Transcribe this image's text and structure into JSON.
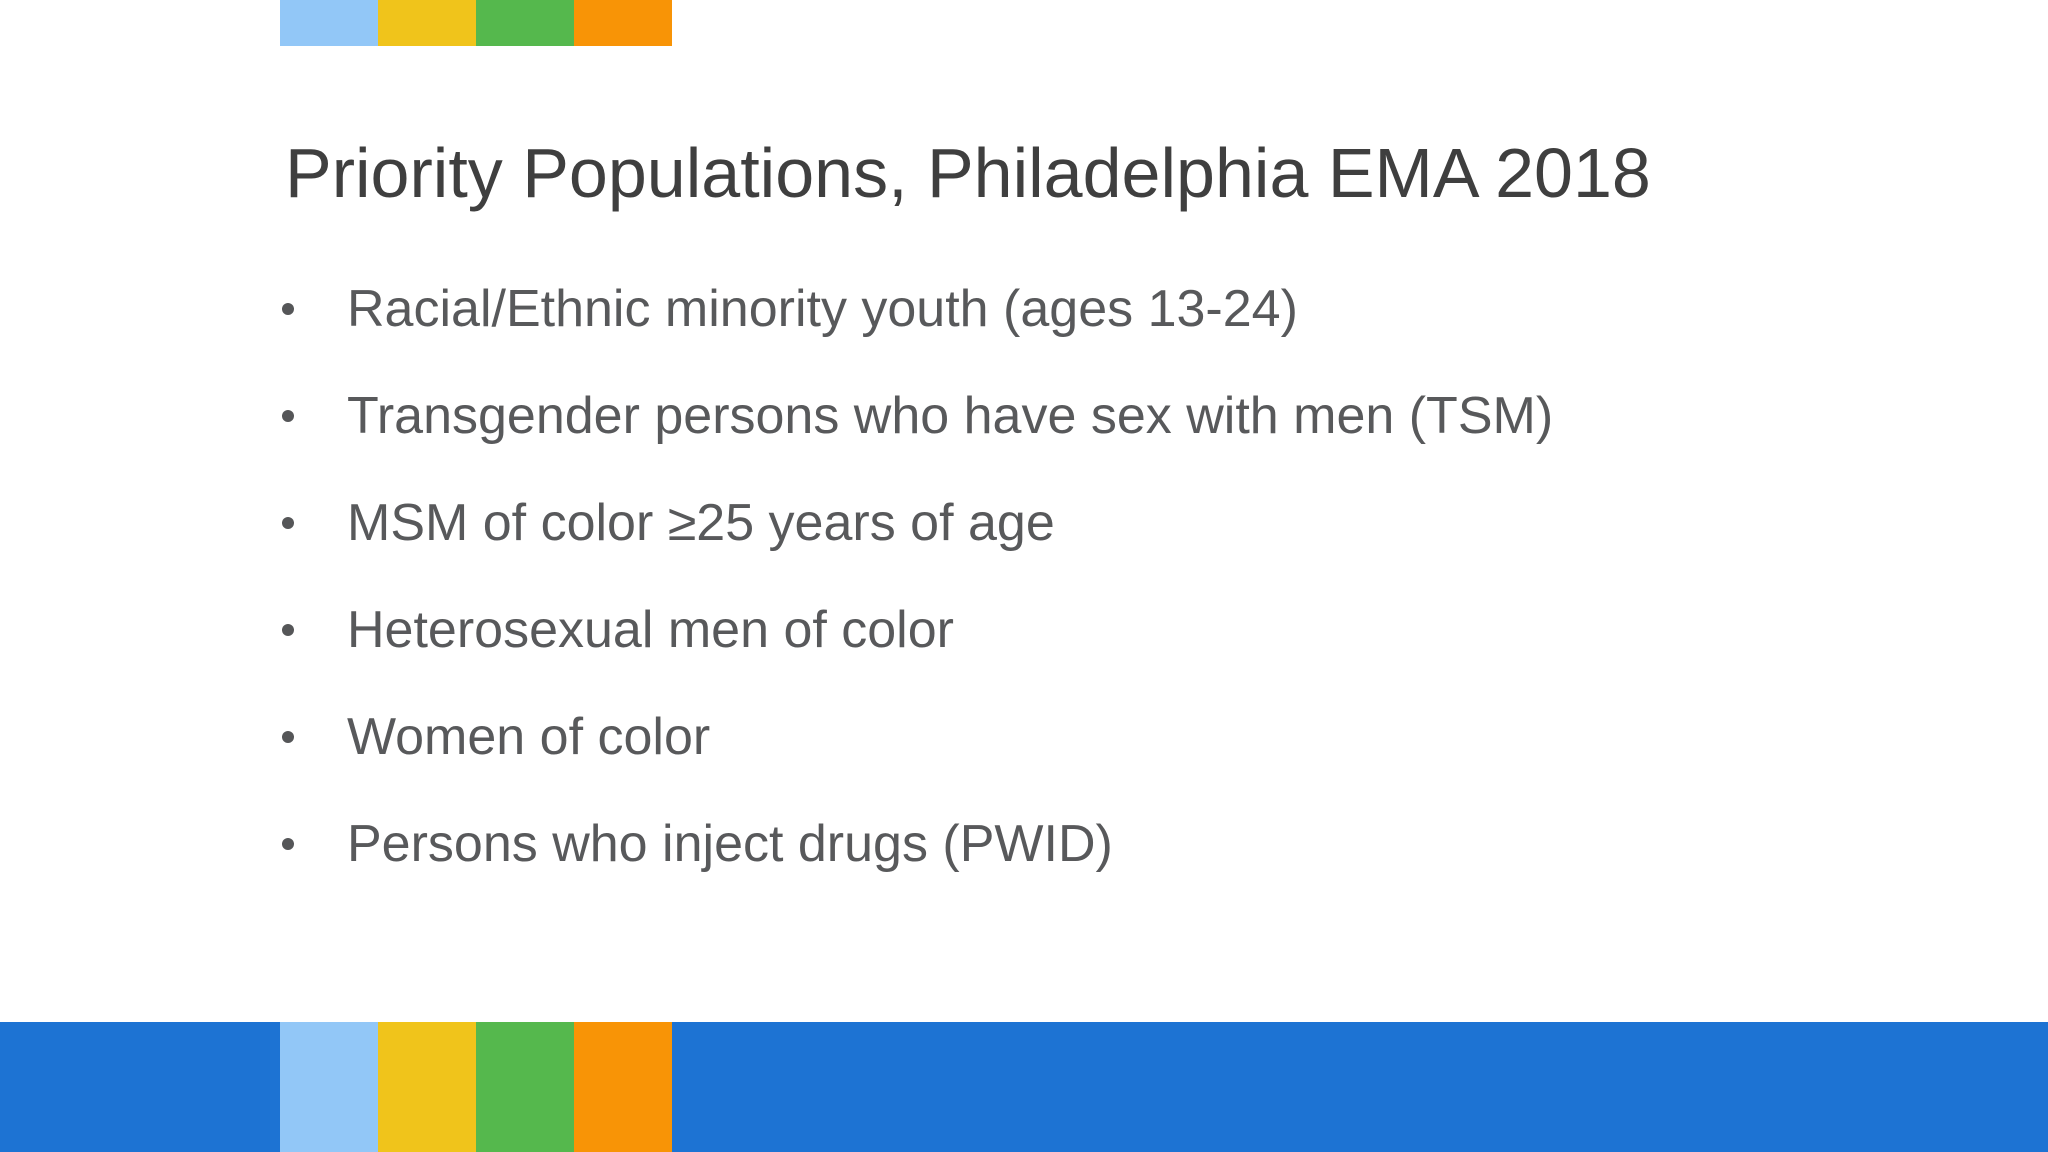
{
  "slide": {
    "title": "Priority Populations, Philadelphia EMA 2018",
    "bullets": [
      "Racial/Ethnic minority youth (ages 13-24)",
      "Transgender persons who have sex with men (TSM)",
      "MSM of color ≥25 years of age",
      "Heterosexual men of color",
      "Women of color",
      "Persons who inject drugs (PWID)"
    ]
  },
  "decor": {
    "accent_colors": [
      {
        "name": "light-blue",
        "hex": "#92C7F7"
      },
      {
        "name": "yellow",
        "hex": "#F0C41B"
      },
      {
        "name": "green",
        "hex": "#55B84D"
      },
      {
        "name": "orange",
        "hex": "#F89406"
      }
    ],
    "footer_bar_color": "#1D73D3",
    "title_color": "#3F3F3F",
    "body_text_color": "#58595B",
    "bullet_dot_color": "#555658",
    "background_color": "#FFFFFF"
  }
}
